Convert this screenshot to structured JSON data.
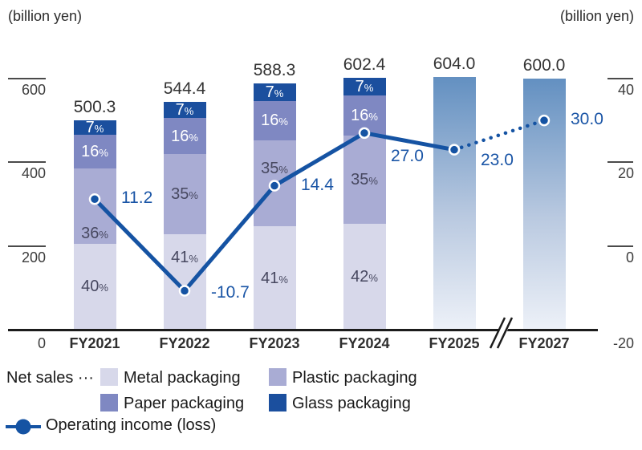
{
  "chart_data": {
    "type": "bar",
    "subtype": "stacked-percent-bars-with-line-overlay",
    "unit": "billion yen",
    "categories": [
      "FY2021",
      "FY2022",
      "FY2023",
      "FY2024",
      "FY2025",
      "FY2027"
    ],
    "net_sales_totals": [
      500.3,
      544.4,
      588.3,
      602.4,
      604.0,
      600.0
    ],
    "net_sales_total_labels": [
      "500.3",
      "544.4",
      "588.3",
      "602.4",
      "604.0",
      "600.0"
    ],
    "stack_segments_bottom_to_top": [
      {
        "name": "Metal packaging",
        "color": "#d7d8ea",
        "label_color": "#474860",
        "percents": [
          40,
          41,
          41,
          42
        ]
      },
      {
        "name": "Plastic packaging",
        "color": "#a9acd4",
        "label_color": "#474860",
        "percents": [
          36,
          35,
          35,
          35
        ]
      },
      {
        "name": "Paper packaging",
        "color": "#7f88c2",
        "label_color": "#ffffff",
        "percents": [
          16,
          16,
          16,
          16
        ]
      },
      {
        "name": "Glass packaging",
        "color": "#1b4f9e",
        "label_color": "#ffffff",
        "percents": [
          7,
          7,
          7,
          7
        ]
      }
    ],
    "plain_gradient_bars": {
      "category_indexes": [
        4,
        5
      ],
      "gradient_top": "#6390c1",
      "gradient_bottom": "#edf1f8"
    },
    "line_series": {
      "name": "Operating income (loss)",
      "color": "#1553a3",
      "values": [
        11.2,
        -10.7,
        14.4,
        27.0,
        23.0,
        30.0
      ],
      "value_labels": [
        "11.2",
        "-10.7",
        "14.4",
        "27.0",
        "23.0",
        "30.0"
      ],
      "dotted_segment_start_index": 4
    },
    "left_axis": {
      "unit_label": "(billion yen)",
      "tick_labels": [
        "600",
        "400",
        "200",
        "0"
      ],
      "tick_values": [
        600,
        400,
        200,
        0
      ]
    },
    "right_axis": {
      "unit_label": "(billion yen)",
      "tick_labels": [
        "40",
        "20",
        "0",
        "-20"
      ],
      "tick_values": [
        40,
        20,
        0,
        -20
      ]
    },
    "x_axis_break_between": [
      "FY2025",
      "FY2027"
    ]
  },
  "legend": {
    "prefix": "Net sales ···",
    "items": [
      {
        "label": "Metal packaging",
        "color": "#d7d8ea"
      },
      {
        "label": "Plastic packaging",
        "color": "#a9acd4"
      },
      {
        "label": "Paper packaging",
        "color": "#7f88c2"
      },
      {
        "label": "Glass packaging",
        "color": "#1b4f9e"
      }
    ],
    "line_item": {
      "label": "Operating income (loss)",
      "color": "#1553a3"
    }
  }
}
